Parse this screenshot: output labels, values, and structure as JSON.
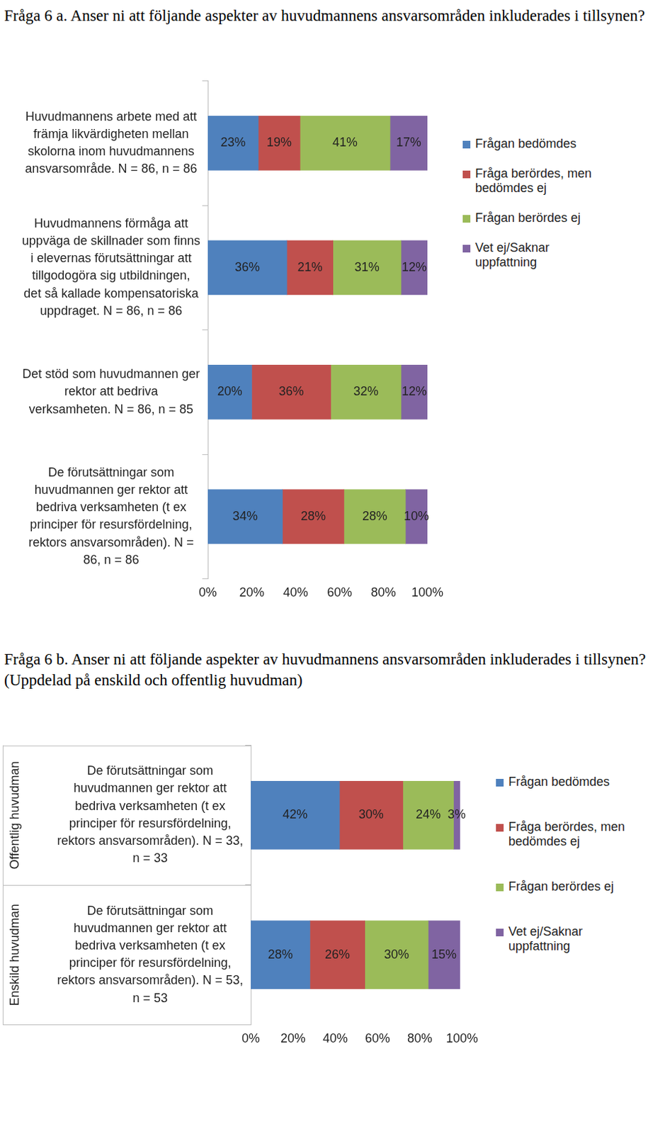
{
  "chart_data": [
    {
      "type": "bar",
      "title": "Fråga 6 a. Anser ni att följande aspekter av huvudmannens ansvarsområden inkluderades i tillsynen?",
      "orientation": "horizontal",
      "stacked": true,
      "data_labels": true,
      "legend": "right",
      "grid": false,
      "categories": [
        "Huvudmannens arbete med att främja likvärdigheten mellan skolorna inom huvudmannens ansvarsområde. N = 86, n = 86",
        "Huvudmannens förmåga att uppväga de skillnader som finns i elevernas förutsättningar att tillgodogöra sig utbildningen, det så kallade kompensatoriska uppdraget. N = 86, n = 86",
        "Det stöd som huvudmannen ger rektor att bedriva verksamheten. N = 86, n = 85",
        "De förutsättningar som huvudmannen ger rektor att bedriva verksamheten (t ex principer för resursfördelning, rektors ansvarsområden). N = 86, n = 86"
      ],
      "series": [
        {
          "name": "Frågan bedömdes",
          "color": "#4f81bd",
          "values": [
            23,
            36,
            20,
            34
          ],
          "value_labels": [
            "23%",
            "36%",
            "20%",
            "34%"
          ]
        },
        {
          "name": "Fråga berördes, men bedömdes ej",
          "color": "#c0504d",
          "values": [
            19,
            21,
            36,
            28
          ],
          "value_labels": [
            "19%",
            "21%",
            "36%",
            "28%"
          ]
        },
        {
          "name": "Frågan berördes ej",
          "color": "#9bbb59",
          "values": [
            41,
            31,
            32,
            28
          ],
          "value_labels": [
            "41%",
            "31%",
            "32%",
            "28%"
          ]
        },
        {
          "name": "Vet ej/Saknar uppfattning",
          "color": "#8064a2",
          "values": [
            17,
            12,
            12,
            10
          ],
          "value_labels": [
            "17%",
            "12%",
            "12%",
            "10%"
          ]
        }
      ],
      "xlim": [
        0,
        100
      ],
      "xticks": [
        {
          "value": 0,
          "label": "0%"
        },
        {
          "value": 20,
          "label": "20%"
        },
        {
          "value": 40,
          "label": "40%"
        },
        {
          "value": 60,
          "label": "60%"
        },
        {
          "value": 80,
          "label": "80%"
        },
        {
          "value": 100,
          "label": "100%"
        }
      ]
    },
    {
      "type": "bar",
      "title": "Fråga 6 b. Anser ni att följande aspekter av huvudmannens ansvarsområden inkluderades i tillsynen? (Uppdelad på enskild och offentlig huvudman)",
      "orientation": "horizontal",
      "stacked": true,
      "data_labels": true,
      "legend": "right",
      "grid": false,
      "groups": [
        "Offentlig huvudman",
        "Enskild huvudman"
      ],
      "categories": [
        "De förutsättningar som huvudmannen ger rektor att bedriva verksamheten (t ex principer för resursfördelning, rektors ansvarsområden). N = 33, n = 33",
        "De förutsättningar som huvudmannen ger rektor att bedriva verksamheten (t ex principer för resursfördelning, rektors ansvarsområden). N = 53, n = 53"
      ],
      "series": [
        {
          "name": "Frågan bedömdes",
          "color": "#4f81bd",
          "values": [
            42,
            28
          ],
          "value_labels": [
            "42%",
            "28%"
          ]
        },
        {
          "name": "Fråga berördes, men bedömdes ej",
          "color": "#c0504d",
          "values": [
            30,
            26
          ],
          "value_labels": [
            "30%",
            "26%"
          ]
        },
        {
          "name": "Frågan berördes ej",
          "color": "#9bbb59",
          "values": [
            24,
            30
          ],
          "value_labels": [
            "24%",
            "30%"
          ]
        },
        {
          "name": "Vet ej/Saknar uppfattning",
          "color": "#8064a2",
          "values": [
            3,
            15
          ],
          "value_labels": [
            "3%",
            "15%"
          ]
        }
      ],
      "xlim": [
        0,
        100
      ],
      "xticks": [
        {
          "value": 0,
          "label": "0%"
        },
        {
          "value": 20,
          "label": "20%"
        },
        {
          "value": 40,
          "label": "40%"
        },
        {
          "value": 60,
          "label": "60%"
        },
        {
          "value": 80,
          "label": "80%"
        },
        {
          "value": 100,
          "label": "100%"
        }
      ]
    }
  ]
}
